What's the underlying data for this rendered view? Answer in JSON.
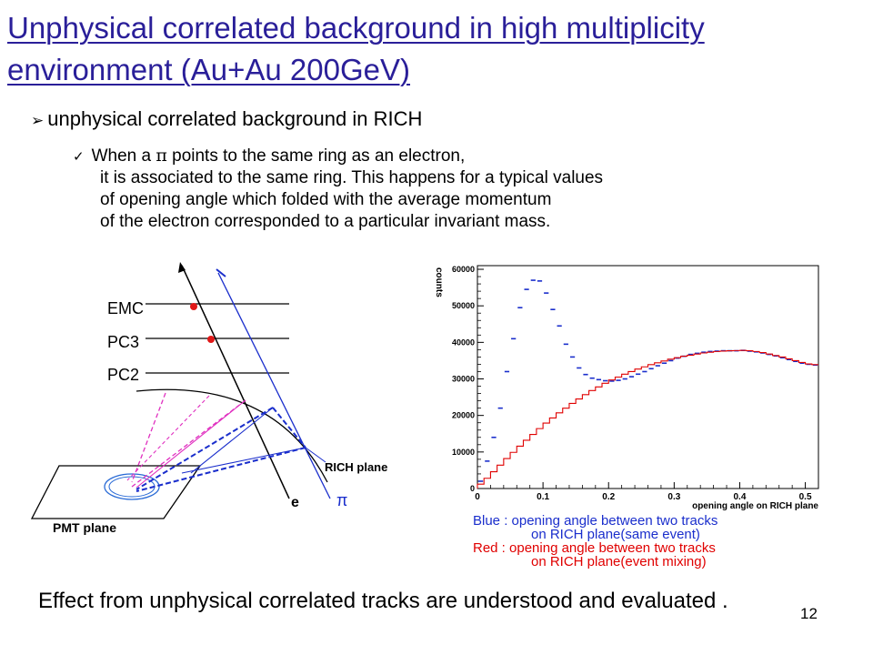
{
  "title": "Unphysical correlated background in high multiplicity environment (Au+Au 200GeV)",
  "bullet": {
    "icon": "arrow-bullet-icon",
    "text": "unphysical correlated background in RICH"
  },
  "sub_bullet": {
    "icon": "checkmark-icon",
    "line1_a": "When a ",
    "line1_pi": "π",
    "line1_b": " points to the same ring as an electron,",
    "line2": "it is associated to the same ring. This happens for a typical values",
    "line3": "of opening angle which folded with the average momentum",
    "line4": "of the electron corresponded to a particular invariant mass."
  },
  "diagram": {
    "labels": {
      "emc": "EMC",
      "pc3": "PC3",
      "pc2": "PC2",
      "rich_plane": "RICH plane",
      "pmt_plane": "PMT plane",
      "electron": "e",
      "pion": "π"
    },
    "colors": {
      "blue": "#1a2ecc",
      "red": "#e01818",
      "magenta": "#e030c0",
      "black": "#000000"
    }
  },
  "legend": {
    "blue_line1": "Blue : opening angle between two tracks",
    "blue_line2": "on RICH plane(same event)",
    "red_line1": "Red  : opening angle between two tracks",
    "red_line2": "on RICH plane(event mixing)",
    "blue_color": "#1a2ecc",
    "red_color": "#e00000"
  },
  "chart_data": {
    "type": "line",
    "title": "",
    "xlabel": "opening angle on RICH plane",
    "ylabel": "counts",
    "xlim": [
      0,
      0.52
    ],
    "ylim": [
      0,
      61000
    ],
    "xticks": [
      "0",
      "0.1",
      "0.2",
      "0.3",
      "0.4",
      "0.5"
    ],
    "yticks": [
      "0",
      "10000",
      "20000",
      "30000",
      "40000",
      "50000",
      "60000"
    ],
    "series": [
      {
        "name": "same event",
        "color": "#1a2ecc",
        "style": "points",
        "x": [
          0.005,
          0.015,
          0.025,
          0.035,
          0.045,
          0.055,
          0.065,
          0.075,
          0.085,
          0.095,
          0.105,
          0.115,
          0.125,
          0.135,
          0.145,
          0.155,
          0.165,
          0.175,
          0.185,
          0.195,
          0.205,
          0.215,
          0.225,
          0.235,
          0.245,
          0.255,
          0.265,
          0.275,
          0.285,
          0.295,
          0.305,
          0.315,
          0.325,
          0.335,
          0.345,
          0.355,
          0.365,
          0.375,
          0.385,
          0.395,
          0.405,
          0.415,
          0.425,
          0.435,
          0.445,
          0.455,
          0.465,
          0.475,
          0.485,
          0.495,
          0.505,
          0.515
        ],
        "y": [
          2000,
          7500,
          14000,
          22000,
          32000,
          41000,
          49500,
          54500,
          57000,
          56800,
          53500,
          49000,
          44500,
          39500,
          36000,
          33000,
          31200,
          30200,
          29800,
          29500,
          29400,
          29600,
          30000,
          30600,
          31300,
          32000,
          32800,
          33600,
          34300,
          35000,
          35700,
          36200,
          36700,
          37000,
          37300,
          37500,
          37600,
          37700,
          37700,
          37700,
          37800,
          37600,
          37400,
          37100,
          36700,
          36300,
          35800,
          35300,
          34800,
          34300,
          34000,
          33800
        ]
      },
      {
        "name": "event mixing",
        "color": "#e00000",
        "style": "step",
        "x": [
          0.005,
          0.015,
          0.025,
          0.035,
          0.045,
          0.055,
          0.065,
          0.075,
          0.085,
          0.095,
          0.105,
          0.115,
          0.125,
          0.135,
          0.145,
          0.155,
          0.165,
          0.175,
          0.185,
          0.195,
          0.205,
          0.215,
          0.225,
          0.235,
          0.245,
          0.255,
          0.265,
          0.275,
          0.285,
          0.295,
          0.305,
          0.315,
          0.325,
          0.335,
          0.345,
          0.355,
          0.365,
          0.375,
          0.385,
          0.395,
          0.405,
          0.415,
          0.425,
          0.435,
          0.445,
          0.455,
          0.465,
          0.475,
          0.485,
          0.495,
          0.505,
          0.515
        ],
        "y": [
          1200,
          2800,
          4600,
          6400,
          8200,
          9900,
          11600,
          13200,
          14800,
          16400,
          17900,
          19300,
          20700,
          22000,
          23300,
          24500,
          25700,
          26800,
          27800,
          28800,
          29700,
          30500,
          31300,
          32000,
          32700,
          33300,
          33900,
          34400,
          34900,
          35400,
          35800,
          36200,
          36500,
          36800,
          37100,
          37300,
          37500,
          37600,
          37700,
          37750,
          37800,
          37700,
          37500,
          37200,
          36800,
          36400,
          36000,
          35500,
          35000,
          34500,
          34100,
          33900
        ]
      }
    ]
  },
  "bottom_text": "Effect from unphysical correlated tracks are understood and evaluated .",
  "page_number": "12"
}
